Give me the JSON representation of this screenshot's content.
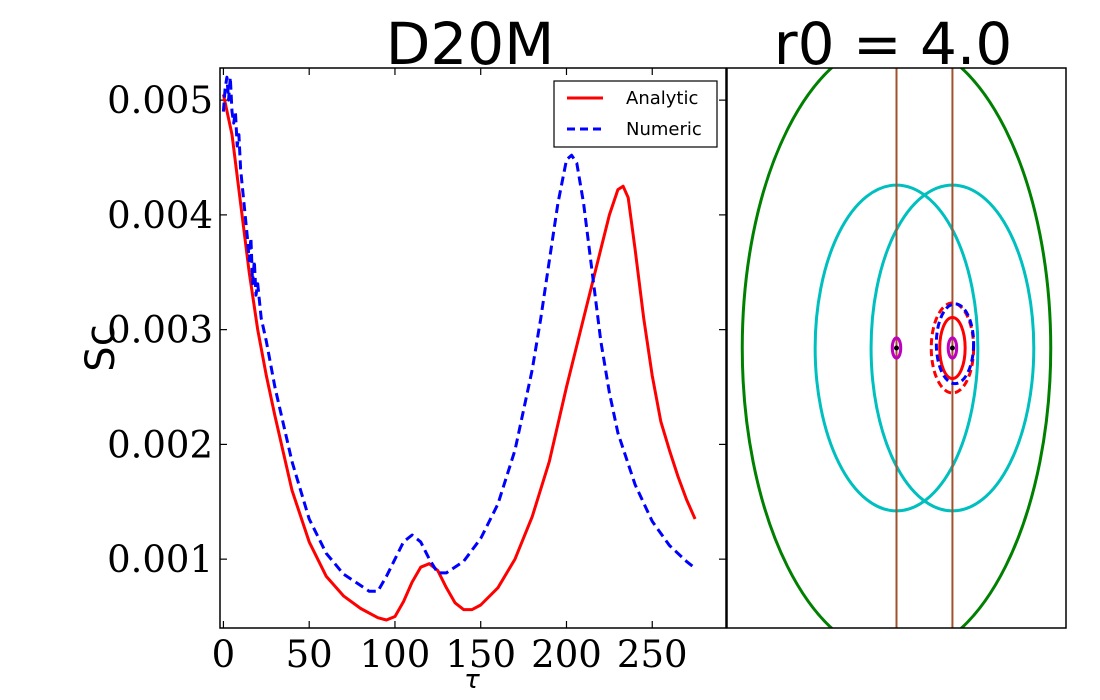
{
  "chart_data": [
    {
      "type": "line",
      "title": "D20M",
      "xlabel": "τ",
      "ylabel": "Sc",
      "xlim": [
        -2,
        293
      ],
      "ylim": [
        0.0004,
        0.00528
      ],
      "xticks": [
        0,
        50,
        100,
        150,
        200,
        250
      ],
      "yticks": [
        0.001,
        0.002,
        0.003,
        0.004,
        0.005
      ],
      "xtick_labels": [
        "0",
        "50",
        "100",
        "150",
        "200",
        "250"
      ],
      "ytick_labels": [
        "0.001",
        "0.002",
        "0.003",
        "0.004",
        "0.005"
      ],
      "legend_position": "top-right",
      "series": [
        {
          "name": "Analytic",
          "color": "#ff0000",
          "style": "solid",
          "x": [
            0,
            5,
            10,
            15,
            20,
            25,
            30,
            40,
            50,
            60,
            70,
            80,
            90,
            95,
            100,
            105,
            110,
            115,
            120,
            125,
            130,
            135,
            140,
            145,
            150,
            160,
            170,
            180,
            190,
            200,
            210,
            220,
            225,
            230,
            233,
            236,
            240,
            245,
            250,
            255,
            260,
            265,
            270,
            275
          ],
          "y": [
            0.00505,
            0.0047,
            0.0041,
            0.0035,
            0.003,
            0.0026,
            0.00225,
            0.0016,
            0.00115,
            0.00085,
            0.00068,
            0.00057,
            0.00049,
            0.00047,
            0.0005,
            0.00063,
            0.0008,
            0.00093,
            0.00096,
            0.0009,
            0.00075,
            0.00062,
            0.00056,
            0.00056,
            0.0006,
            0.00075,
            0.001,
            0.00137,
            0.00185,
            0.0025,
            0.0031,
            0.0037,
            0.004,
            0.00422,
            0.00425,
            0.00415,
            0.0037,
            0.0031,
            0.0026,
            0.0022,
            0.00195,
            0.00172,
            0.00152,
            0.00135
          ]
        },
        {
          "name": "Numeric",
          "color": "#0000ff",
          "style": "dashed",
          "x": [
            0,
            1,
            2,
            3,
            4,
            5,
            6,
            7,
            8,
            9,
            10,
            12,
            14,
            15,
            16,
            17,
            18,
            19,
            20,
            22,
            25,
            30,
            40,
            50,
            60,
            70,
            80,
            85,
            90,
            95,
            100,
            105,
            110,
            115,
            120,
            125,
            130,
            140,
            150,
            160,
            170,
            180,
            185,
            190,
            195,
            200,
            203,
            206,
            210,
            215,
            220,
            225,
            230,
            240,
            250,
            260,
            270,
            275
          ],
          "y": [
            0.0049,
            0.0051,
            0.0052,
            0.005,
            0.0052,
            0.0049,
            0.0048,
            0.0049,
            0.0046,
            0.0047,
            0.0044,
            0.0041,
            0.0038,
            0.0036,
            0.0038,
            0.0034,
            0.0036,
            0.0033,
            0.0034,
            0.0031,
            0.0029,
            0.0025,
            0.00185,
            0.00135,
            0.00105,
            0.00087,
            0.00077,
            0.00072,
            0.00072,
            0.00085,
            0.001,
            0.00115,
            0.00121,
            0.00115,
            0.001,
            0.00088,
            0.00088,
            0.00098,
            0.00118,
            0.00148,
            0.00195,
            0.00265,
            0.0031,
            0.0036,
            0.0041,
            0.00448,
            0.00452,
            0.00445,
            0.0041,
            0.0035,
            0.0029,
            0.00245,
            0.0021,
            0.00165,
            0.00133,
            0.00112,
            0.00098,
            0.00092
          ]
        }
      ]
    },
    {
      "type": "diagram",
      "title": "r0 = 4.0",
      "xlim": [
        -4,
        4
      ],
      "ylim": [
        -3.3,
        3.3
      ],
      "shapes": [
        {
          "kind": "ellipse",
          "cx": 0,
          "cy": 0,
          "rx": 3.64,
          "ry": 3.64,
          "color": "#008000",
          "style": "solid"
        },
        {
          "kind": "ellipse",
          "cx": 1.32,
          "cy": 0,
          "rx": 1.92,
          "ry": 1.92,
          "color": "#00bfbf",
          "style": "solid"
        },
        {
          "kind": "ellipse",
          "cx": 0,
          "cy": 0,
          "rx": 1.92,
          "ry": 1.92,
          "color": "#00bfbf",
          "style": "solid"
        },
        {
          "kind": "vline",
          "x": 0,
          "color": "#a0522d"
        },
        {
          "kind": "vline",
          "x": 1.32,
          "color": "#a0522d"
        },
        {
          "kind": "ellipse",
          "cx": 1.32,
          "cy": 0,
          "rx": 0.3,
          "ry": 0.36,
          "color": "#ff0000",
          "style": "solid"
        },
        {
          "kind": "ellipse",
          "cx": 1.32,
          "cy": 0,
          "rx": 0.5,
          "ry": 0.53,
          "color": "#ff0000",
          "style": "dashed"
        },
        {
          "kind": "ellipse",
          "cx": 1.38,
          "cy": 0.05,
          "rx": 0.44,
          "ry": 0.47,
          "color": "#0000ff",
          "style": "dashed"
        },
        {
          "kind": "ellipse",
          "cx": 1.32,
          "cy": 0,
          "rx": 0.1,
          "ry": 0.12,
          "color": "#bf00bf",
          "style": "solid"
        },
        {
          "kind": "ellipse",
          "cx": 0,
          "cy": 0,
          "rx": 0.1,
          "ry": 0.12,
          "color": "#bf00bf",
          "style": "solid"
        },
        {
          "kind": "dot",
          "cx": 1.32,
          "cy": 0,
          "color": "#000000"
        },
        {
          "kind": "dot",
          "cx": 0,
          "cy": 0,
          "color": "#000000"
        }
      ]
    }
  ]
}
